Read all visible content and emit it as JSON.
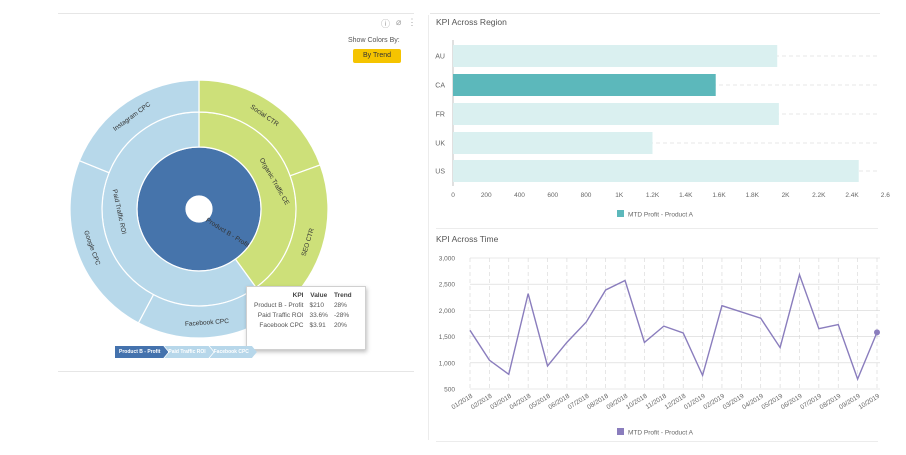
{
  "toolbar": {
    "show_colors_label": "Show Colors By:",
    "by_trend_label": "By Trend"
  },
  "sunburst": {
    "center": "Product B - Profit",
    "inner_ring": [
      "Organic Traffic CE",
      "Paid Traffic ROI"
    ],
    "outer_ring": [
      "Social CTR",
      "SEO CTR",
      "Facebook CPC",
      "Google CPC",
      "Instagram CPC"
    ],
    "colors": {
      "center": "#4674ab",
      "green": "#cde079",
      "light_blue": "#b7d8ea",
      "stroke": "#ffffff"
    }
  },
  "tooltip": {
    "headers": [
      "KPI",
      "Value",
      "Trend"
    ],
    "rows": [
      [
        "Product B - Profit",
        "$210",
        "28%"
      ],
      [
        "Paid Traffic ROI",
        "33.6%",
        "-28%"
      ],
      [
        "Facebook CPC",
        "$3.91",
        "20%"
      ]
    ]
  },
  "breadcrumb": [
    "Product B - Profit",
    "Paid Traffic ROI",
    "Facebook CPC"
  ],
  "chart_data": [
    {
      "type": "bar",
      "orientation": "horizontal",
      "title": "KPI Across Region",
      "categories": [
        "AU",
        "CA",
        "FR",
        "UK",
        "US"
      ],
      "series": [
        {
          "name": "MTD Profit - Product A",
          "values": [
            1950,
            1580,
            1960,
            1200,
            2440
          ]
        }
      ],
      "highlighted": "CA",
      "xlim": [
        0,
        2500
      ],
      "xticks": [
        "0",
        "200",
        "400",
        "600",
        "800",
        "1K",
        "1.2K",
        "1.4K",
        "1.6K",
        "1.8K",
        "2K",
        "2.2K",
        "2.4K",
        "2.6"
      ],
      "grid": true,
      "legend": "bottom",
      "colors": {
        "highlight": "#5cb8bb",
        "normal": "#daf0f0"
      }
    },
    {
      "type": "line",
      "title": "KPI Across Time",
      "x": [
        "01/2018",
        "02/2018",
        "03/2018",
        "04/2018",
        "05/2018",
        "06/2018",
        "07/2018",
        "08/2018",
        "09/2018",
        "10/2018",
        "11/2018",
        "12/2018",
        "01/2019",
        "02/2019",
        "03/2019",
        "04/2019",
        "05/2019",
        "06/2019",
        "07/2019",
        "08/2019",
        "09/2019",
        "10/2019"
      ],
      "series": [
        {
          "name": "MTD Profit - Product A",
          "values": [
            1620,
            1050,
            780,
            2320,
            940,
            1390,
            1780,
            2390,
            2570,
            1390,
            1700,
            1570,
            760,
            2090,
            1970,
            1850,
            1290,
            2680,
            1650,
            1730,
            690,
            1580
          ]
        }
      ],
      "ylim": [
        500,
        3000
      ],
      "yticks": [
        "500",
        "1,000",
        "1,500",
        "2,000",
        "2,500",
        "3,000"
      ],
      "grid": true,
      "legend": "bottom",
      "color": "#8a7dbd"
    }
  ]
}
